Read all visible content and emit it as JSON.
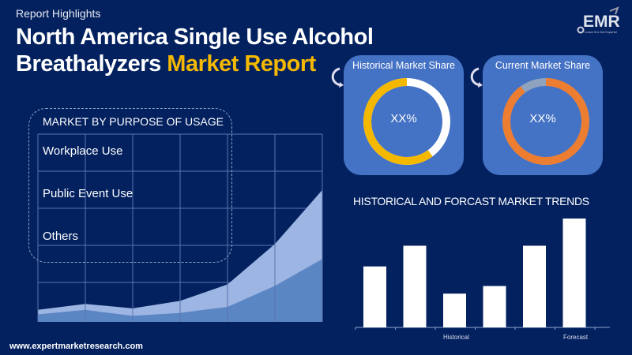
{
  "header": {
    "kicker": "Report Highlights",
    "title_line1": "North America Single Use Alcohol",
    "title_line2_plain": "Breathalyzers ",
    "title_line2_highlight": "Market Report"
  },
  "logo": {
    "text": "EMR",
    "tagline": "Leave it to the Experts!"
  },
  "share_cards": [
    {
      "title": "Historical Market Share",
      "value": "XX%",
      "ring_color": "#f5b800",
      "rest_color": "#ffffff",
      "fraction": 0.6
    },
    {
      "title": "Current Market Share",
      "value": "XX%",
      "ring_color": "#ed7d31",
      "rest_color": "#8fa3bf",
      "fraction": 0.9
    }
  ],
  "segments": {
    "title": "MARKET BY PURPOSE OF USAGE",
    "items": [
      "Workplace Use",
      "Public Event Use",
      "Others"
    ]
  },
  "area_chart": {
    "outer": [
      8,
      12,
      9,
      14,
      25,
      52,
      88
    ],
    "inner": [
      5,
      8,
      4,
      6,
      10,
      24,
      42
    ]
  },
  "chart_data": {
    "type": "bar",
    "title": "HISTORICAL AND FORCAST MARKET TRENDS",
    "categories": [
      "",
      "",
      "",
      "",
      "",
      ""
    ],
    "values": [
      56,
      75,
      31,
      38,
      75,
      100
    ],
    "group_labels": [
      "Historical",
      "Forecast"
    ]
  },
  "colors": {
    "background": "#03215f",
    "card": "#4472c4",
    "accent": "#f5b800"
  },
  "footer": {
    "url": "www.expertmarketresearch.com"
  }
}
